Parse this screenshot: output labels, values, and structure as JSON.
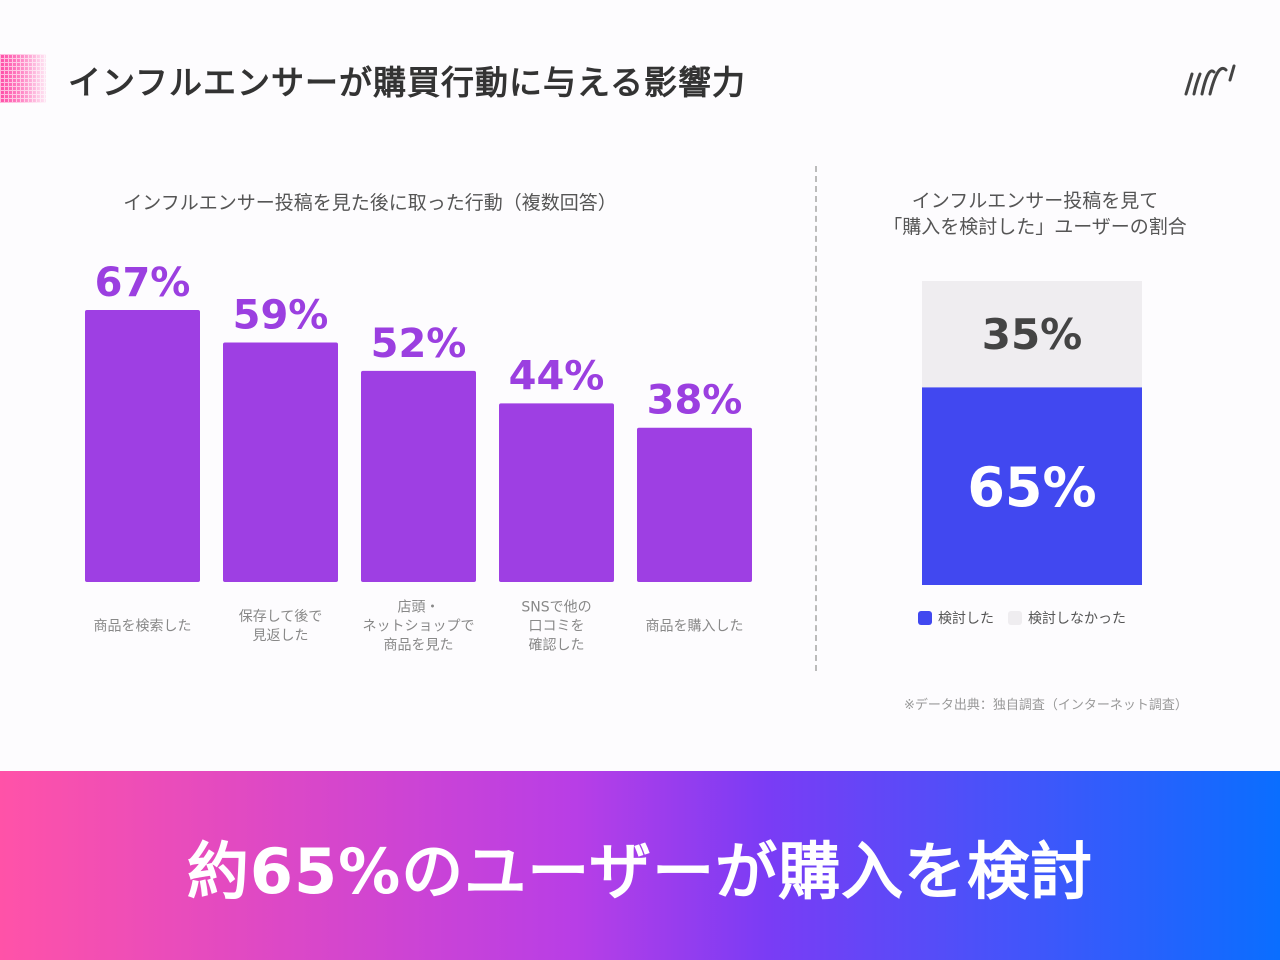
{
  "header": {
    "title": "インフルエンサーが購買行動に与える影響力",
    "logo": "ussi"
  },
  "chart_data": [
    {
      "type": "bar",
      "title": "インフルエンサー投稿を見た後に取った行動（複数回答）",
      "categories": [
        "商品を検索した",
        "保存して後で\n見返した",
        "店頭・\nネットショップで\n商品を見た",
        "SNSで他の\n口コミを\n確認した",
        "商品を購入した"
      ],
      "values": [
        67,
        59,
        52,
        44,
        38
      ],
      "data_labels": [
        "67%",
        "59%",
        "52%",
        "44%",
        "38%"
      ],
      "unit": "%",
      "color": "#9e3fe3",
      "label_color": "#9b3fe0",
      "grid": false
    },
    {
      "type": "bar",
      "stacked": true,
      "title": "インフルエンサー投稿を見て\n「購入を検討した」ユーザーの割合",
      "series": [
        {
          "name": "検討した",
          "values": [
            65
          ],
          "label": "65%",
          "color": "#4148f0"
        },
        {
          "name": "検討しなかった",
          "values": [
            35
          ],
          "label": "35%",
          "color": "#efedf0"
        }
      ],
      "legend": "bottom"
    }
  ],
  "source": "※データ出典：独自調査（インターネット調査）",
  "banner": {
    "text": "約65%のユーザーが購入を検討"
  }
}
